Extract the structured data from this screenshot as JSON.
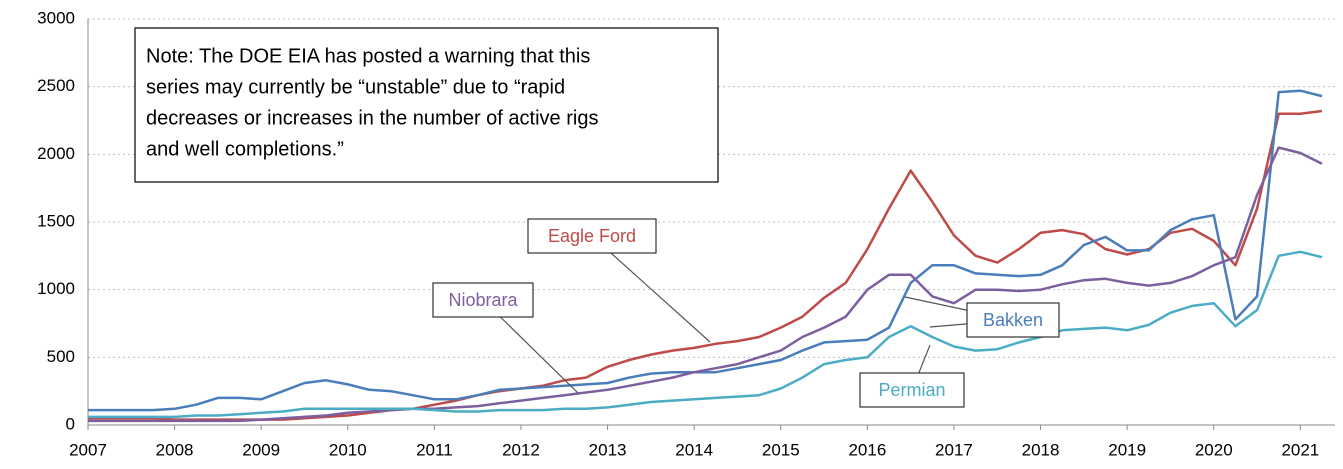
{
  "chart_data": {
    "type": "line",
    "note": [
      "Note: The DOE EIA has posted a warning that this",
      "series may currently be “unstable” due to “rapid",
      "decreases or increases in the number of active rigs",
      "and well completions.”"
    ],
    "x": [
      2007,
      2007.25,
      2007.5,
      2007.75,
      2008,
      2008.25,
      2008.5,
      2008.75,
      2009,
      2009.25,
      2009.5,
      2009.75,
      2010,
      2010.25,
      2010.5,
      2010.75,
      2011,
      2011.25,
      2011.5,
      2011.75,
      2012,
      2012.25,
      2012.5,
      2012.75,
      2013,
      2013.25,
      2013.5,
      2013.75,
      2014,
      2014.25,
      2014.5,
      2014.75,
      2015,
      2015.25,
      2015.5,
      2015.75,
      2016,
      2016.25,
      2016.5,
      2016.75,
      2017,
      2017.25,
      2017.5,
      2017.75,
      2018,
      2018.25,
      2018.5,
      2018.75,
      2019,
      2019.25,
      2019.5,
      2019.75,
      2020,
      2020.25,
      2020.5,
      2020.75,
      2021,
      2021.25
    ],
    "series": [
      {
        "name": "Bakken",
        "color": "#4a7ebb",
        "values": [
          110,
          110,
          110,
          110,
          120,
          150,
          200,
          200,
          190,
          250,
          310,
          330,
          300,
          260,
          250,
          220,
          190,
          190,
          220,
          260,
          270,
          280,
          290,
          300,
          310,
          350,
          380,
          390,
          390,
          390,
          420,
          450,
          480,
          550,
          610,
          620,
          630,
          720,
          1050,
          1180,
          1180,
          1120,
          1110,
          1100,
          1110,
          1180,
          1330,
          1390,
          1290,
          1290,
          1440,
          1520,
          1550,
          780,
          950,
          2460,
          2470,
          2430
        ]
      },
      {
        "name": "Eagle Ford",
        "color": "#be4b48",
        "values": [
          50,
          50,
          50,
          50,
          40,
          40,
          40,
          40,
          40,
          40,
          50,
          60,
          70,
          90,
          110,
          120,
          150,
          180,
          220,
          250,
          270,
          290,
          330,
          350,
          430,
          480,
          520,
          550,
          570,
          600,
          620,
          650,
          720,
          800,
          940,
          1050,
          1300,
          1600,
          1880,
          1650,
          1400,
          1250,
          1200,
          1300,
          1420,
          1440,
          1410,
          1300,
          1260,
          1300,
          1420,
          1450,
          1360,
          1180,
          1600,
          2300,
          2300,
          2320
        ]
      },
      {
        "name": "Niobrara",
        "color": "#7d5fa0",
        "values": [
          30,
          30,
          30,
          30,
          30,
          30,
          30,
          30,
          40,
          50,
          60,
          70,
          90,
          100,
          110,
          120,
          120,
          130,
          140,
          160,
          180,
          200,
          220,
          240,
          260,
          290,
          320,
          350,
          390,
          420,
          450,
          500,
          550,
          650,
          720,
          800,
          1000,
          1110,
          1110,
          950,
          900,
          1000,
          1000,
          990,
          1000,
          1040,
          1070,
          1080,
          1050,
          1030,
          1050,
          1100,
          1180,
          1240,
          1700,
          2050,
          2010,
          1930
        ]
      },
      {
        "name": "Permian",
        "color": "#4bacc6",
        "values": [
          60,
          60,
          60,
          60,
          60,
          70,
          70,
          80,
          90,
          100,
          120,
          120,
          120,
          120,
          120,
          120,
          110,
          100,
          100,
          110,
          110,
          110,
          120,
          120,
          130,
          150,
          170,
          180,
          190,
          200,
          210,
          220,
          270,
          350,
          450,
          480,
          500,
          650,
          730,
          650,
          580,
          550,
          560,
          610,
          650,
          700,
          710,
          720,
          700,
          740,
          830,
          880,
          900,
          730,
          850,
          1250,
          1280,
          1240
        ]
      }
    ],
    "xlim": [
      2007,
      2021.4
    ],
    "xticks": [
      2007,
      2008,
      2009,
      2010,
      2011,
      2012,
      2013,
      2014,
      2015,
      2016,
      2017,
      2018,
      2019,
      2020,
      2021
    ],
    "ylim": [
      0,
      3000
    ],
    "yticks": [
      0,
      500,
      1000,
      1500,
      2000,
      2500,
      3000
    ],
    "grid": true
  }
}
